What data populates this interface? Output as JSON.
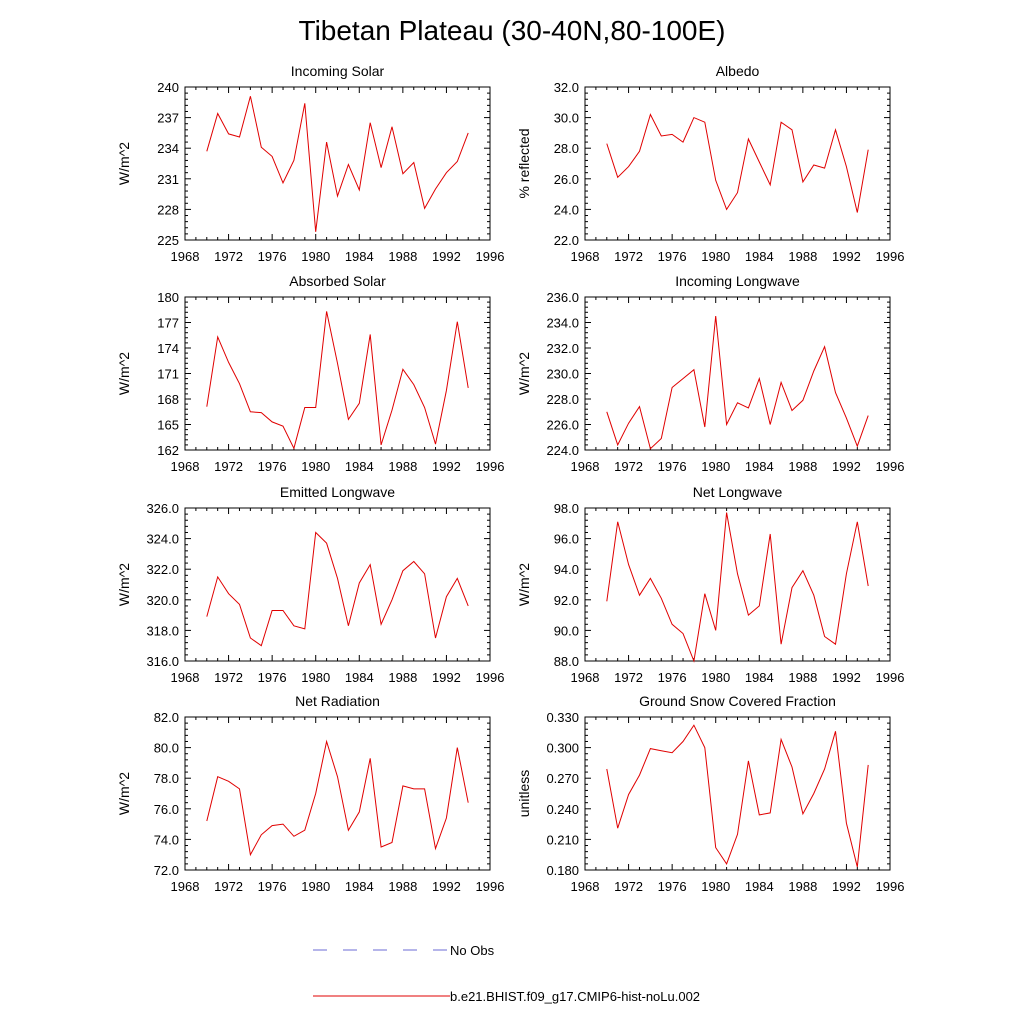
{
  "title": "Tibetan Plateau (30-40N,80-100E)",
  "x_ticks": [
    "1968",
    "1972",
    "1976",
    "1980",
    "1984",
    "1988",
    "1992",
    "1996"
  ],
  "legend": [
    {
      "label": "No Obs",
      "style": "dashed",
      "color": "#6b6bd6"
    },
    {
      "label": "b.e21.BHIST.f09_g17.CMIP6-hist-noLu.002",
      "style": "solid",
      "color": "#e00000"
    }
  ],
  "line_color": "#e00000",
  "chart_data": [
    {
      "type": "line",
      "title": "Incoming Solar",
      "ylabel": "W/m^2",
      "xlim": [
        1968,
        1996
      ],
      "ylim": [
        225,
        240
      ],
      "yticks": [
        "225",
        "228",
        "231",
        "234",
        "237",
        "240"
      ],
      "x": [
        1970,
        1971,
        1972,
        1973,
        1974,
        1975,
        1976,
        1977,
        1978,
        1979,
        1980,
        1981,
        1982,
        1983,
        1984,
        1985,
        1986,
        1987,
        1988,
        1989,
        1990,
        1991,
        1992,
        1993,
        1994
      ],
      "series": [
        {
          "values": [
            233.7,
            237.4,
            235.4,
            235.1,
            239.1,
            234.1,
            233.2,
            230.6,
            232.8,
            238.4,
            225.8,
            234.6,
            229.3,
            232.4,
            229.9,
            236.5,
            232.1,
            236.1,
            231.5,
            232.6,
            228.1,
            230.0,
            231.6,
            232.7,
            235.5
          ]
        }
      ]
    },
    {
      "type": "line",
      "title": "Albedo",
      "ylabel": "% reflected",
      "xlim": [
        1968,
        1996
      ],
      "ylim": [
        22.0,
        32.0
      ],
      "yticks": [
        "22.0",
        "24.0",
        "26.0",
        "28.0",
        "30.0",
        "32.0"
      ],
      "x": [
        1970,
        1971,
        1972,
        1973,
        1974,
        1975,
        1976,
        1977,
        1978,
        1979,
        1980,
        1981,
        1982,
        1983,
        1984,
        1985,
        1986,
        1987,
        1988,
        1989,
        1990,
        1991,
        1992,
        1993,
        1994
      ],
      "series": [
        {
          "values": [
            28.3,
            26.1,
            26.8,
            27.8,
            30.2,
            28.8,
            28.9,
            28.4,
            30.0,
            29.7,
            25.9,
            24.0,
            25.1,
            28.6,
            27.1,
            25.6,
            29.7,
            29.2,
            25.8,
            26.9,
            26.7,
            29.2,
            26.8,
            23.8,
            27.9
          ]
        }
      ]
    },
    {
      "type": "line",
      "title": "Absorbed Solar",
      "ylabel": "W/m^2",
      "xlim": [
        1968,
        1996
      ],
      "ylim": [
        162,
        180
      ],
      "yticks": [
        "162",
        "165",
        "168",
        "171",
        "174",
        "177",
        "180"
      ],
      "x": [
        1970,
        1971,
        1972,
        1973,
        1974,
        1975,
        1976,
        1977,
        1978,
        1979,
        1980,
        1981,
        1982,
        1983,
        1984,
        1985,
        1986,
        1987,
        1988,
        1989,
        1990,
        1991,
        1992,
        1993,
        1994
      ],
      "series": [
        {
          "values": [
            167.1,
            175.3,
            172.3,
            169.8,
            166.5,
            166.4,
            165.3,
            164.8,
            162.2,
            167.0,
            167.0,
            178.3,
            172.2,
            165.6,
            167.5,
            175.6,
            162.6,
            166.7,
            171.5,
            169.7,
            167.0,
            162.7,
            169.0,
            177.1,
            169.3
          ]
        }
      ]
    },
    {
      "type": "line",
      "title": "Incoming Longwave",
      "ylabel": "W/m^2",
      "xlim": [
        1968,
        1996
      ],
      "ylim": [
        224.0,
        236.0
      ],
      "yticks": [
        "224.0",
        "226.0",
        "228.0",
        "230.0",
        "232.0",
        "234.0",
        "236.0"
      ],
      "x": [
        1970,
        1971,
        1972,
        1973,
        1974,
        1975,
        1976,
        1977,
        1978,
        1979,
        1980,
        1981,
        1982,
        1983,
        1984,
        1985,
        1986,
        1987,
        1988,
        1989,
        1990,
        1991,
        1992,
        1993,
        1994
      ],
      "series": [
        {
          "values": [
            227.0,
            224.4,
            226.1,
            227.4,
            224.1,
            224.9,
            228.9,
            229.6,
            230.3,
            225.8,
            234.5,
            226.0,
            227.7,
            227.3,
            229.6,
            226.0,
            229.3,
            227.1,
            227.9,
            230.2,
            232.1,
            228.5,
            226.5,
            224.3,
            226.7
          ]
        }
      ]
    },
    {
      "type": "line",
      "title": "Emitted Longwave",
      "ylabel": "W/m^2",
      "xlim": [
        1968,
        1996
      ],
      "ylim": [
        316.0,
        326.0
      ],
      "yticks": [
        "316.0",
        "318.0",
        "320.0",
        "322.0",
        "324.0",
        "326.0"
      ],
      "x": [
        1970,
        1971,
        1972,
        1973,
        1974,
        1975,
        1976,
        1977,
        1978,
        1979,
        1980,
        1981,
        1982,
        1983,
        1984,
        1985,
        1986,
        1987,
        1988,
        1989,
        1990,
        1991,
        1992,
        1993,
        1994
      ],
      "series": [
        {
          "values": [
            318.9,
            321.5,
            320.4,
            319.7,
            317.5,
            317.0,
            319.3,
            319.3,
            318.3,
            318.1,
            324.4,
            323.7,
            321.4,
            318.3,
            321.1,
            322.3,
            318.4,
            320.0,
            321.9,
            322.5,
            321.7,
            317.5,
            320.2,
            321.4,
            319.6
          ]
        }
      ]
    },
    {
      "type": "line",
      "title": "Net Longwave",
      "ylabel": "W/m^2",
      "xlim": [
        1968,
        1996
      ],
      "ylim": [
        88.0,
        98.0
      ],
      "yticks": [
        "88.0",
        "90.0",
        "92.0",
        "94.0",
        "96.0",
        "98.0"
      ],
      "x": [
        1970,
        1971,
        1972,
        1973,
        1974,
        1975,
        1976,
        1977,
        1978,
        1979,
        1980,
        1981,
        1982,
        1983,
        1984,
        1985,
        1986,
        1987,
        1988,
        1989,
        1990,
        1991,
        1992,
        1993,
        1994
      ],
      "series": [
        {
          "values": [
            91.9,
            97.1,
            94.3,
            92.3,
            93.4,
            92.1,
            90.4,
            89.8,
            88.0,
            92.4,
            90.0,
            97.7,
            93.7,
            91.0,
            91.6,
            96.3,
            89.1,
            92.8,
            93.9,
            92.3,
            89.6,
            89.1,
            93.7,
            97.1,
            92.9
          ]
        }
      ]
    },
    {
      "type": "line",
      "title": "Net Radiation",
      "ylabel": "W/m^2",
      "xlim": [
        1968,
        1996
      ],
      "ylim": [
        72.0,
        82.0
      ],
      "yticks": [
        "72.0",
        "74.0",
        "76.0",
        "78.0",
        "80.0",
        "82.0"
      ],
      "x": [
        1970,
        1971,
        1972,
        1973,
        1974,
        1975,
        1976,
        1977,
        1978,
        1979,
        1980,
        1981,
        1982,
        1983,
        1984,
        1985,
        1986,
        1987,
        1988,
        1989,
        1990,
        1991,
        1992,
        1993,
        1994
      ],
      "series": [
        {
          "values": [
            75.2,
            78.1,
            77.8,
            77.3,
            73.0,
            74.3,
            74.9,
            75.0,
            74.2,
            74.6,
            77.0,
            80.4,
            78.1,
            74.6,
            75.8,
            79.3,
            73.5,
            73.8,
            77.5,
            77.3,
            77.3,
            73.4,
            75.4,
            80.0,
            76.4
          ]
        }
      ]
    },
    {
      "type": "line",
      "title": "Ground Snow Covered Fraction",
      "ylabel": "unitless",
      "xlim": [
        1968,
        1996
      ],
      "ylim": [
        0.18,
        0.33
      ],
      "yticks": [
        "0.180",
        "0.210",
        "0.240",
        "0.270",
        "0.300",
        "0.330"
      ],
      "x": [
        1970,
        1971,
        1972,
        1973,
        1974,
        1975,
        1976,
        1977,
        1978,
        1979,
        1980,
        1981,
        1982,
        1983,
        1984,
        1985,
        1986,
        1987,
        1988,
        1989,
        1990,
        1991,
        1992,
        1993,
        1994
      ],
      "series": [
        {
          "values": [
            0.279,
            0.221,
            0.254,
            0.273,
            0.299,
            0.297,
            0.295,
            0.306,
            0.322,
            0.3,
            0.202,
            0.186,
            0.215,
            0.287,
            0.234,
            0.236,
            0.308,
            0.281,
            0.235,
            0.255,
            0.279,
            0.316,
            0.226,
            0.183,
            0.283
          ]
        }
      ]
    }
  ]
}
